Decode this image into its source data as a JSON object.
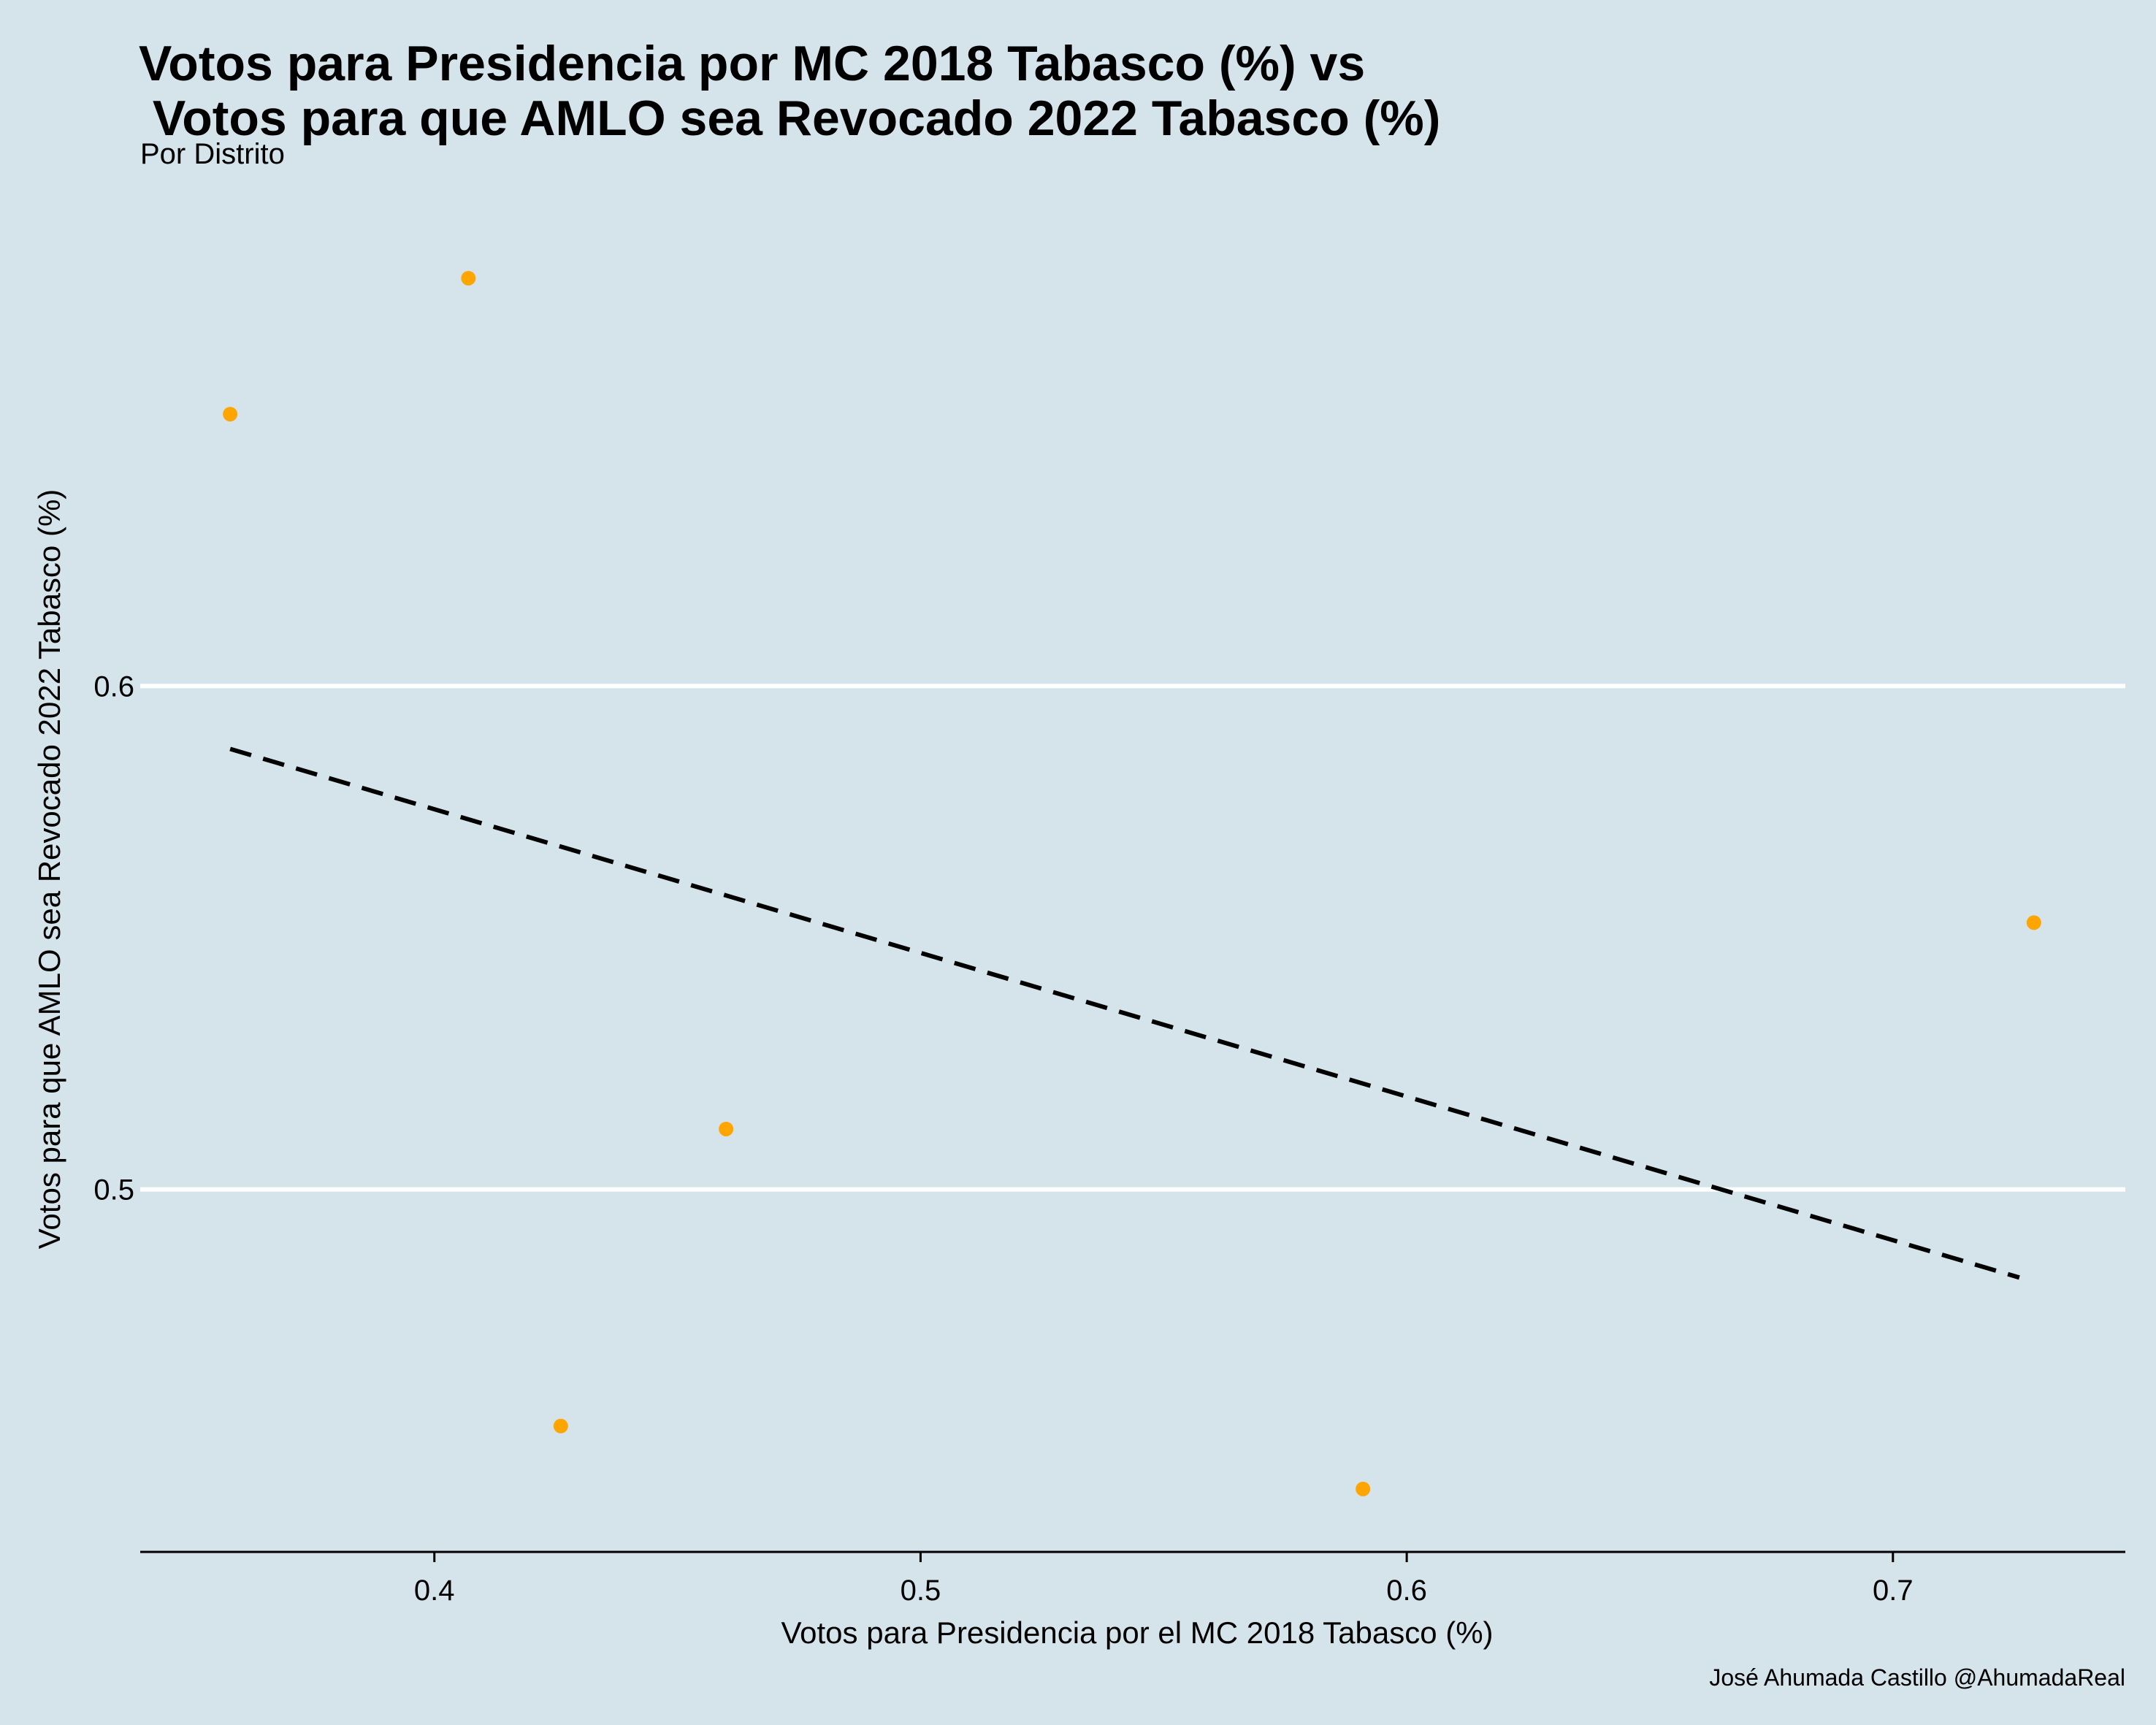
{
  "chart_data": {
    "type": "scatter",
    "title_line1": "Votos para Presidencia por MC 2018 Tabasco (%) vs",
    "title_line2": " Votos para que AMLO sea Revocado 2022 Tabasco (%)",
    "subtitle": "Por Distrito",
    "xlabel": "Votos para Presidencia por el MC 2018 Tabasco (%)",
    "ylabel": "Votos para que AMLO sea Revocado 2022 Tabasco (%)",
    "caption": "José Ahumada Castillo @AhumadaReal",
    "xlim": [
      0.3395,
      0.7478
    ],
    "ylim": [
      0.428,
      0.7
    ],
    "xticks": [
      0.4,
      0.5,
      0.6,
      0.7
    ],
    "xtick_labels": [
      "0.4",
      "0.5",
      "0.6",
      "0.7"
    ],
    "yticks": [
      0.5,
      0.6
    ],
    "ytick_labels": [
      "0.5",
      "0.6"
    ],
    "grid": "horizontal major lines only",
    "point_color": "#ffa500",
    "points": [
      {
        "x": 0.358,
        "y": 0.654
      },
      {
        "x": 0.407,
        "y": 0.681
      },
      {
        "x": 0.426,
        "y": 0.453
      },
      {
        "x": 0.46,
        "y": 0.512
      },
      {
        "x": 0.591,
        "y": 0.4405
      },
      {
        "x": 0.729,
        "y": 0.553
      }
    ],
    "trend_line": {
      "style": "dashed",
      "color": "#000000",
      "x": [
        0.358,
        0.726
      ],
      "y": [
        0.5875,
        0.4825
      ]
    }
  }
}
